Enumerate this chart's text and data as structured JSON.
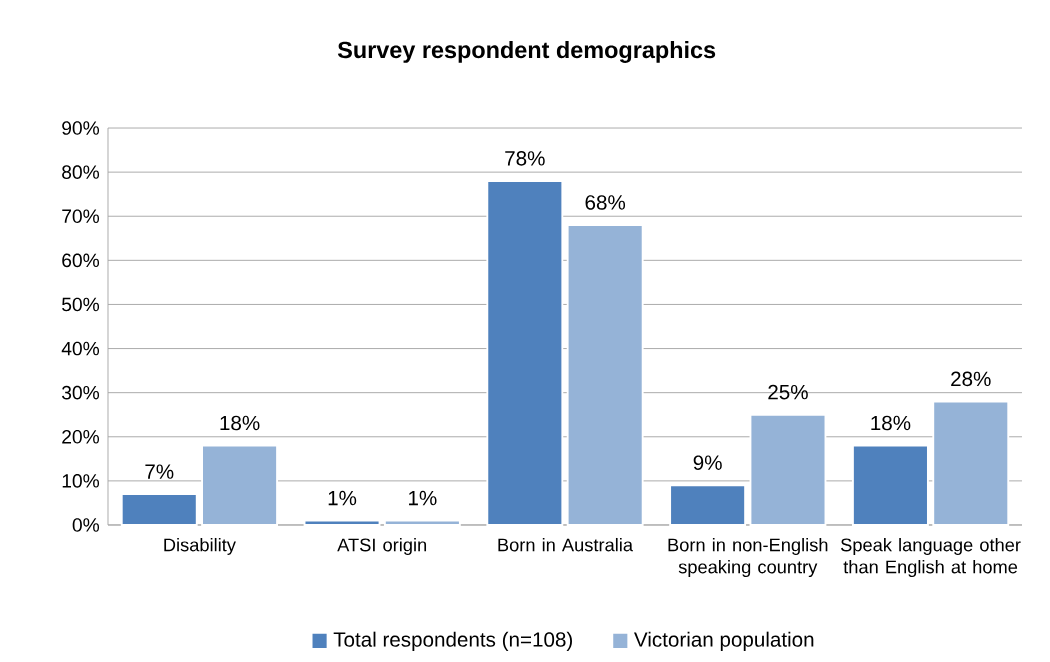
{
  "chart_data": {
    "type": "bar",
    "title": "Survey respondent demographics",
    "categories": [
      "Disability",
      "ATSI origin",
      "Born in Australia",
      "Born in non-English speaking country",
      "Speak language other than English at home"
    ],
    "series": [
      {
        "name": "Total respondents (n=108)",
        "color": "#4f81bd",
        "values": [
          7,
          1,
          78,
          9,
          18
        ],
        "value_labels": [
          "7%",
          "1%",
          "78%",
          "9%",
          "18%"
        ]
      },
      {
        "name": "Victorian population",
        "color": "#95b3d7",
        "values": [
          18,
          1,
          68,
          25,
          28
        ],
        "value_labels": [
          "18%",
          "1%",
          "68%",
          "25%",
          "28%"
        ]
      }
    ],
    "ylim": [
      0,
      90
    ],
    "yticks": [
      {
        "value": 0,
        "label": "0%"
      },
      {
        "value": 10,
        "label": "10%"
      },
      {
        "value": 20,
        "label": "20%"
      },
      {
        "value": 30,
        "label": "30%"
      },
      {
        "value": 40,
        "label": "40%"
      },
      {
        "value": 50,
        "label": "50%"
      },
      {
        "value": 60,
        "label": "60%"
      },
      {
        "value": 70,
        "label": "70%"
      },
      {
        "value": 80,
        "label": "80%"
      },
      {
        "value": 90,
        "label": "90%"
      }
    ],
    "grid": "y",
    "legend": "bottom"
  }
}
